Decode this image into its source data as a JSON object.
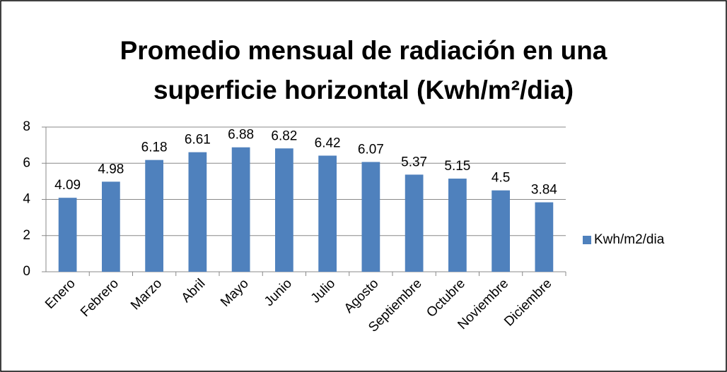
{
  "chart_data": {
    "type": "bar",
    "title": "Promedio mensual de radiación en una superficie horizontal (Kwh/m²/dia)",
    "categories": [
      "Enero",
      "Febrero",
      "Marzo",
      "Abril",
      "Mayo",
      "Junio",
      "Julio",
      "Agosto",
      "Septiembre",
      "Octubre",
      "Noviembre",
      "Diciembre"
    ],
    "series": [
      {
        "name": "Kwh/m2/dia",
        "color": "#4f81bd",
        "values": [
          4.09,
          4.98,
          6.18,
          6.61,
          6.88,
          6.82,
          6.42,
          6.07,
          5.37,
          5.15,
          4.5,
          3.84
        ]
      }
    ],
    "ylim": [
      0,
      8
    ],
    "yticks": [
      0,
      2,
      4,
      6,
      8
    ],
    "grid": true,
    "legend": "right"
  }
}
